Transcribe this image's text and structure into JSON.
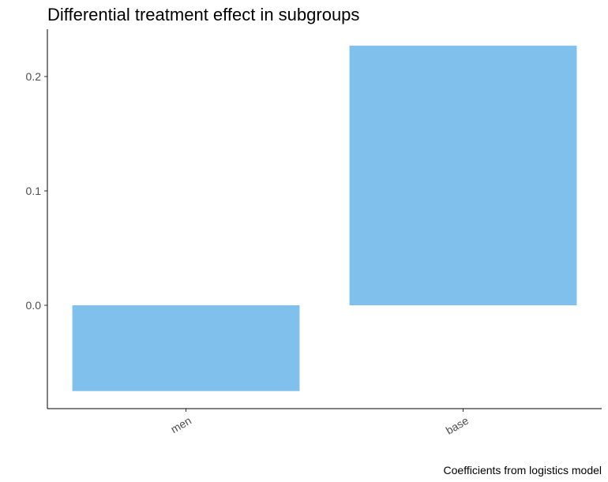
{
  "chart_data": {
    "type": "bar",
    "title": "Differential treatment effect in subgroups",
    "caption": "Coefficients from logistics model",
    "xlabel": "",
    "ylabel": "",
    "categories": [
      "men",
      "base"
    ],
    "values": [
      -0.075,
      0.227
    ],
    "ylim": [
      -0.09,
      0.24
    ],
    "yticks": [
      0.0,
      0.1,
      0.2
    ],
    "ytick_labels": [
      "0.0",
      "0.1",
      "0.2"
    ],
    "bar_color": "#7FC0ED",
    "grid": false,
    "legend": "none"
  }
}
